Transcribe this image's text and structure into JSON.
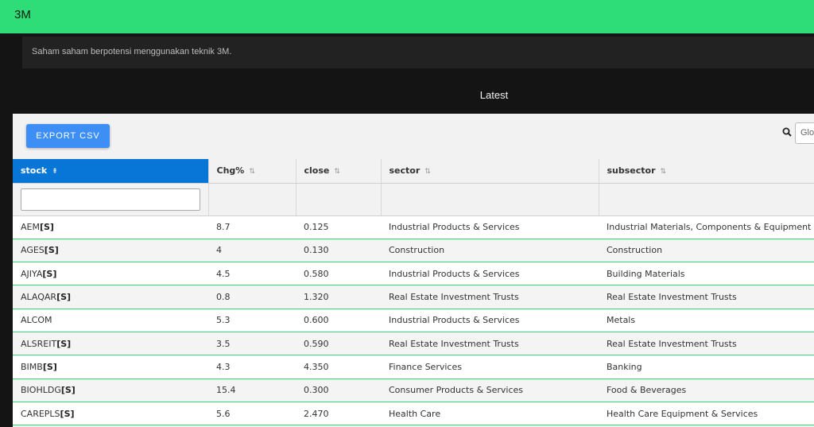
{
  "header": {
    "brand": "3M"
  },
  "notice": {
    "text": "Saham saham berpotensi menggunakan teknik 3M."
  },
  "section": {
    "title": "Latest"
  },
  "toolbar": {
    "export_label": "EXPORT CSV",
    "search_placeholder": "Glo"
  },
  "table": {
    "columns": [
      "stock",
      "Chg%",
      "close",
      "sector",
      "subsector"
    ],
    "rows": [
      {
        "stock": "AEM",
        "tag": "[S]",
        "chg": "8.7",
        "close": "0.125",
        "sector": "Industrial Products & Services",
        "subsector": "Industrial Materials, Components & Equipment"
      },
      {
        "stock": "AGES",
        "tag": "[S]",
        "chg": "4",
        "close": "0.130",
        "sector": "Construction",
        "subsector": "Construction"
      },
      {
        "stock": "AJIYA",
        "tag": "[S]",
        "chg": "4.5",
        "close": "0.580",
        "sector": "Industrial Products & Services",
        "subsector": "Building Materials"
      },
      {
        "stock": "ALAQAR",
        "tag": "[S]",
        "chg": "0.8",
        "close": "1.320",
        "sector": "Real Estate Investment Trusts",
        "subsector": "Real Estate Investment Trusts"
      },
      {
        "stock": "ALCOM",
        "tag": "",
        "chg": "5.3",
        "close": "0.600",
        "sector": "Industrial Products & Services",
        "subsector": "Metals"
      },
      {
        "stock": "ALSREIT",
        "tag": "[S]",
        "chg": "3.5",
        "close": "0.590",
        "sector": "Real Estate Investment Trusts",
        "subsector": "Real Estate Investment Trusts"
      },
      {
        "stock": "BIMB",
        "tag": "[S]",
        "chg": "4.3",
        "close": "4.350",
        "sector": "Finance Services",
        "subsector": "Banking"
      },
      {
        "stock": "BIOHLDG",
        "tag": "[S]",
        "chg": "15.4",
        "close": "0.300",
        "sector": "Consumer Products & Services",
        "subsector": "Food & Beverages"
      },
      {
        "stock": "CAREPLS",
        "tag": "[S]",
        "chg": "5.6",
        "close": "2.470",
        "sector": "Health Care",
        "subsector": "Health Care Equipment & Services"
      }
    ]
  }
}
